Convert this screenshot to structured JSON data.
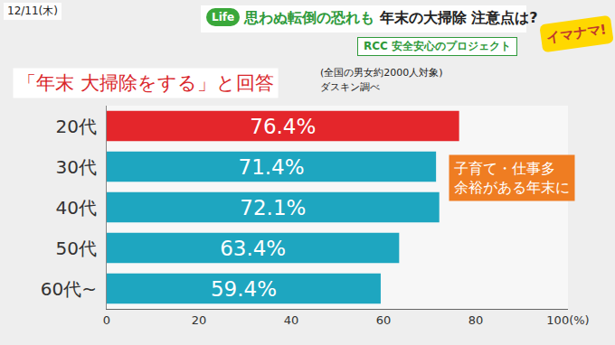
{
  "header": {
    "date": "12/11(木)",
    "tag": "Life",
    "headline_accent": "思わぬ転倒の恐れも",
    "headline": "年末の大掃除 注意点は?",
    "project": "RCC 安全安心のプロジェクト",
    "logo": "イマナマ!"
  },
  "chart_data": {
    "type": "bar",
    "orientation": "horizontal",
    "title": "「年末 大掃除をする」と回答",
    "subtitle": "(全国の男女約2000人対象)",
    "source": "ダスキン調べ",
    "annotation": [
      "子育て・仕事多",
      "余裕がある年末に"
    ],
    "categories": [
      "20代",
      "30代",
      "40代",
      "50代",
      "60代~"
    ],
    "values": [
      76.4,
      71.4,
      72.1,
      63.4,
      59.4
    ],
    "value_labels": [
      "76.4%",
      "71.4%",
      "72.1%",
      "63.4%",
      "59.4%"
    ],
    "colors": [
      "#e4262b",
      "#1ea6c0",
      "#1ea6c0",
      "#1ea6c0",
      "#1ea6c0"
    ],
    "xlim": [
      0,
      100
    ],
    "xticks": [
      0,
      20,
      40,
      60,
      80,
      {
        "value": 100,
        "label": "100(%)"
      }
    ],
    "grid": false,
    "data_labels": true
  }
}
